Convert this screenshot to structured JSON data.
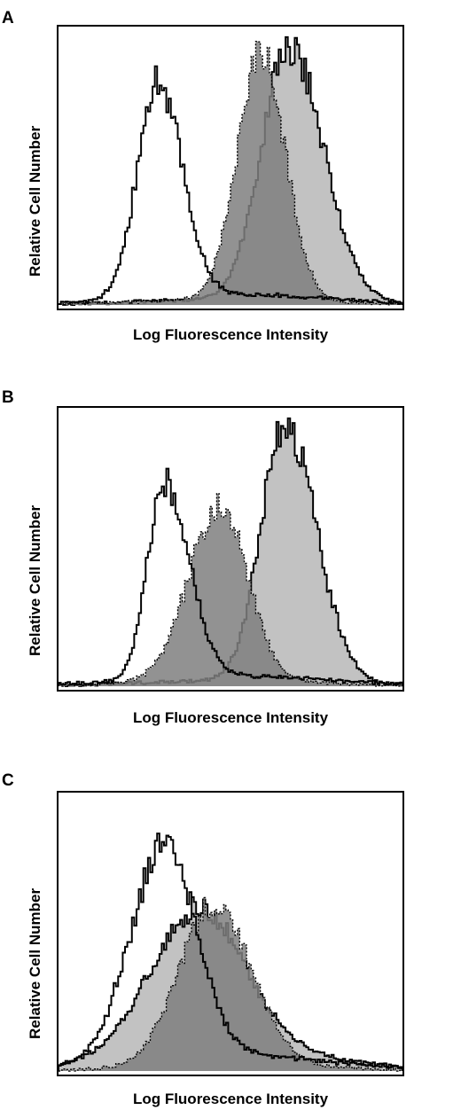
{
  "figure": {
    "panels": [
      {
        "letter": "A",
        "ylabel": "Relative Cell Number",
        "xlabel": "Log Fluorescence Intensity"
      },
      {
        "letter": "B",
        "ylabel": "Relative Cell Number",
        "xlabel": "Log Fluorescence Intensity"
      },
      {
        "letter": "C",
        "ylabel": "Relative Cell Number",
        "xlabel": "Log Fluorescence Intensity"
      }
    ]
  },
  "colors": {
    "dark_fill": "#7f7f7f",
    "light_fill": "#c2c2c2",
    "outline": "#000000"
  },
  "chart_data": [
    {
      "type": "area",
      "panel": "A",
      "title": "",
      "xlabel": "Log Fluorescence Intensity",
      "ylabel": "Relative Cell Number",
      "xlim": [
        0,
        100
      ],
      "ylim": [
        0,
        100
      ],
      "grid": false,
      "legend": "none",
      "series": [
        {
          "style": "open-solid",
          "peaks": [
            {
              "center": 29,
              "left_width": 6,
              "right_width": 7,
              "height": 80
            }
          ],
          "tail": 4
        },
        {
          "style": "dark-fill-dotted",
          "peaks": [
            {
              "center": 59,
              "left_width": 7,
              "right_width": 7,
              "height": 92
            }
          ],
          "tail": 2
        },
        {
          "style": "light-fill-solid",
          "peaks": [
            {
              "center": 67,
              "left_width": 8,
              "right_width": 10,
              "height": 95
            }
          ],
          "tail": 2
        }
      ]
    },
    {
      "type": "area",
      "panel": "B",
      "title": "",
      "xlabel": "Log Fluorescence Intensity",
      "ylabel": "Relative Cell Number",
      "xlim": [
        0,
        100
      ],
      "ylim": [
        0,
        100
      ],
      "grid": false,
      "legend": "none",
      "series": [
        {
          "style": "open-solid",
          "peaks": [
            {
              "center": 31,
              "left_width": 5,
              "right_width": 7,
              "height": 73
            }
          ],
          "tail": 4
        },
        {
          "style": "dark-fill-dotted",
          "peaks": [
            {
              "center": 47,
              "left_width": 9,
              "right_width": 8,
              "height": 66
            }
          ],
          "tail": 2
        },
        {
          "style": "light-fill-solid",
          "peaks": [
            {
              "center": 66,
              "left_width": 7,
              "right_width": 9,
              "height": 96
            }
          ],
          "tail": 2
        }
      ]
    },
    {
      "type": "area",
      "panel": "C",
      "title": "",
      "xlabel": "Log Fluorescence Intensity",
      "ylabel": "Relative Cell Number",
      "xlim": [
        0,
        100
      ],
      "ylim": [
        0,
        100
      ],
      "grid": false,
      "legend": "none",
      "series": [
        {
          "style": "open-solid",
          "peaks": [
            {
              "center": 31,
              "left_width": 10,
              "right_width": 9,
              "height": 80
            }
          ],
          "tail": 6
        },
        {
          "style": "dark-fill-dotted",
          "peaks": [
            {
              "center": 45,
              "left_width": 10,
              "right_width": 11,
              "height": 60
            }
          ],
          "tail": 2
        },
        {
          "style": "light-fill-solid",
          "peaks": [
            {
              "center": 41,
              "left_width": 14,
              "right_width": 13,
              "height": 53
            }
          ],
          "tail": 8
        }
      ]
    }
  ]
}
